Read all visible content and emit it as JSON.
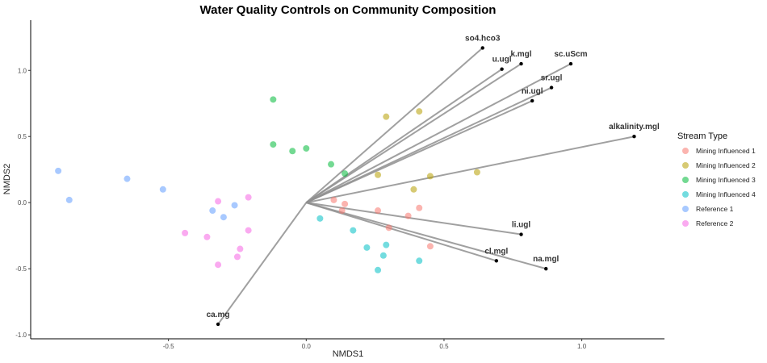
{
  "chart_data": {
    "type": "scatter",
    "title": "Water Quality Controls on Community Composition",
    "xlabel": "NMDS1",
    "ylabel": "NMDS2",
    "xlim": [
      -1.0,
      1.3
    ],
    "ylim": [
      -1.03,
      1.38
    ],
    "xticks": [
      -0.5,
      0.0,
      0.5,
      1.0
    ],
    "xtick_labels": [
      "-0.5",
      "0.0",
      "0.5",
      "1.0"
    ],
    "yticks": [
      -1.0,
      -0.5,
      0.0,
      0.5,
      1.0
    ],
    "ytick_labels": [
      "-1.0",
      "-0.5",
      "0.0",
      "0.5",
      "1.0"
    ],
    "grid": false,
    "legend": {
      "title": "Stream Type",
      "position": "right",
      "entries": [
        "Mining Influenced 1",
        "Mining Influenced 2",
        "Mining Influenced 3",
        "Mining Influenced 4",
        "Reference 1",
        "Reference 2"
      ]
    },
    "series": [
      {
        "name": "Mining Influenced 1",
        "color": "#f8766d",
        "points": [
          [
            0.1,
            0.02
          ],
          [
            0.14,
            -0.01
          ],
          [
            0.13,
            -0.06
          ],
          [
            0.26,
            -0.06
          ],
          [
            0.3,
            -0.19
          ],
          [
            0.37,
            -0.1
          ],
          [
            0.41,
            -0.04
          ],
          [
            0.45,
            -0.33
          ]
        ]
      },
      {
        "name": "Mining Influenced 2",
        "color": "#b79f00",
        "points": [
          [
            0.29,
            0.65
          ],
          [
            0.41,
            0.69
          ],
          [
            0.26,
            0.21
          ],
          [
            0.45,
            0.2
          ],
          [
            0.39,
            0.1
          ],
          [
            0.62,
            0.23
          ]
        ]
      },
      {
        "name": "Mining Influenced 3",
        "color": "#00ba38",
        "points": [
          [
            -0.12,
            0.78
          ],
          [
            -0.12,
            0.44
          ],
          [
            -0.05,
            0.39
          ],
          [
            0.0,
            0.41
          ],
          [
            0.09,
            0.29
          ],
          [
            0.14,
            0.22
          ]
        ]
      },
      {
        "name": "Mining Influenced 4",
        "color": "#00bfc4",
        "points": [
          [
            0.05,
            -0.12
          ],
          [
            0.17,
            -0.21
          ],
          [
            0.22,
            -0.34
          ],
          [
            0.29,
            -0.32
          ],
          [
            0.28,
            -0.4
          ],
          [
            0.41,
            -0.44
          ],
          [
            0.26,
            -0.51
          ]
        ]
      },
      {
        "name": "Reference 1",
        "color": "#619cff",
        "points": [
          [
            -0.9,
            0.24
          ],
          [
            -0.86,
            0.02
          ],
          [
            -0.65,
            0.18
          ],
          [
            -0.52,
            0.1
          ],
          [
            -0.34,
            -0.06
          ],
          [
            -0.3,
            -0.11
          ],
          [
            -0.26,
            -0.02
          ]
        ]
      },
      {
        "name": "Reference 2",
        "color": "#f564e3",
        "points": [
          [
            -0.32,
            0.01
          ],
          [
            -0.21,
            0.04
          ],
          [
            -0.44,
            -0.23
          ],
          [
            -0.36,
            -0.26
          ],
          [
            -0.21,
            -0.21
          ],
          [
            -0.24,
            -0.35
          ],
          [
            -0.25,
            -0.41
          ],
          [
            -0.32,
            -0.47
          ]
        ]
      }
    ],
    "vectors": [
      {
        "name": "so4.hco3",
        "x": 0.64,
        "y": 1.17
      },
      {
        "name": "u.ugl",
        "x": 0.71,
        "y": 1.01
      },
      {
        "name": "k.mgl",
        "x": 0.78,
        "y": 1.05
      },
      {
        "name": "sc.uScm",
        "x": 0.96,
        "y": 1.05
      },
      {
        "name": "sr.ugl",
        "x": 0.89,
        "y": 0.87
      },
      {
        "name": "ni.ugl",
        "x": 0.82,
        "y": 0.77
      },
      {
        "name": "alkalinity.mgl",
        "x": 1.19,
        "y": 0.5
      },
      {
        "name": "li.ugl",
        "x": 0.78,
        "y": -0.24
      },
      {
        "name": "cl.mgl",
        "x": 0.69,
        "y": -0.44
      },
      {
        "name": "na.mgl",
        "x": 0.87,
        "y": -0.5
      },
      {
        "name": "ca.mg",
        "x": -0.32,
        "y": -0.92
      }
    ]
  },
  "colors": {
    "vector_line": "#8f8f8f",
    "vector_tip": "#000000",
    "axis": "#000000"
  }
}
